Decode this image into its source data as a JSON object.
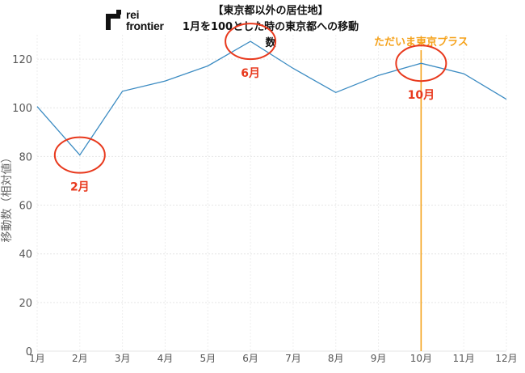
{
  "logo": {
    "line1": "rei",
    "line2": "frontier"
  },
  "title_lines": [
    "【東京都以外の居住地】",
    "1月を100とした時の東京都への移動数"
  ],
  "chart_data": {
    "type": "line",
    "title": "【東京都以外の居住地】 1月を100とした時の東京都への移動数",
    "xlabel": "",
    "ylabel": "移動数（相対値）",
    "categories": [
      "1月",
      "2月",
      "3月",
      "4月",
      "5月",
      "6月",
      "7月",
      "8月",
      "9月",
      "10月",
      "11月",
      "12月"
    ],
    "series": [
      {
        "values": [
          100.5,
          80.6,
          106.8,
          111.0,
          117.2,
          127.3,
          116.2,
          106.3,
          113.3,
          118.3,
          114.0,
          103.5
        ]
      }
    ],
    "ylim": [
      0,
      130
    ],
    "yticks": [
      0,
      20,
      40,
      60,
      80,
      100,
      120
    ],
    "grid": true,
    "line_color": "#3b8bc2",
    "annotations": [
      {
        "text": "2月",
        "category": "2月",
        "value": 80.6,
        "style": "circle",
        "color": "#e8391d"
      },
      {
        "text": "6月",
        "category": "6月",
        "value": 127.3,
        "style": "circle",
        "color": "#e8391d"
      },
      {
        "text": "10月",
        "category": "10月",
        "value": 118.3,
        "style": "circle",
        "color": "#e8391d"
      }
    ],
    "vline": {
      "category": "10月",
      "label": "ただいま東京プラス",
      "color": "#f5a21b"
    }
  }
}
